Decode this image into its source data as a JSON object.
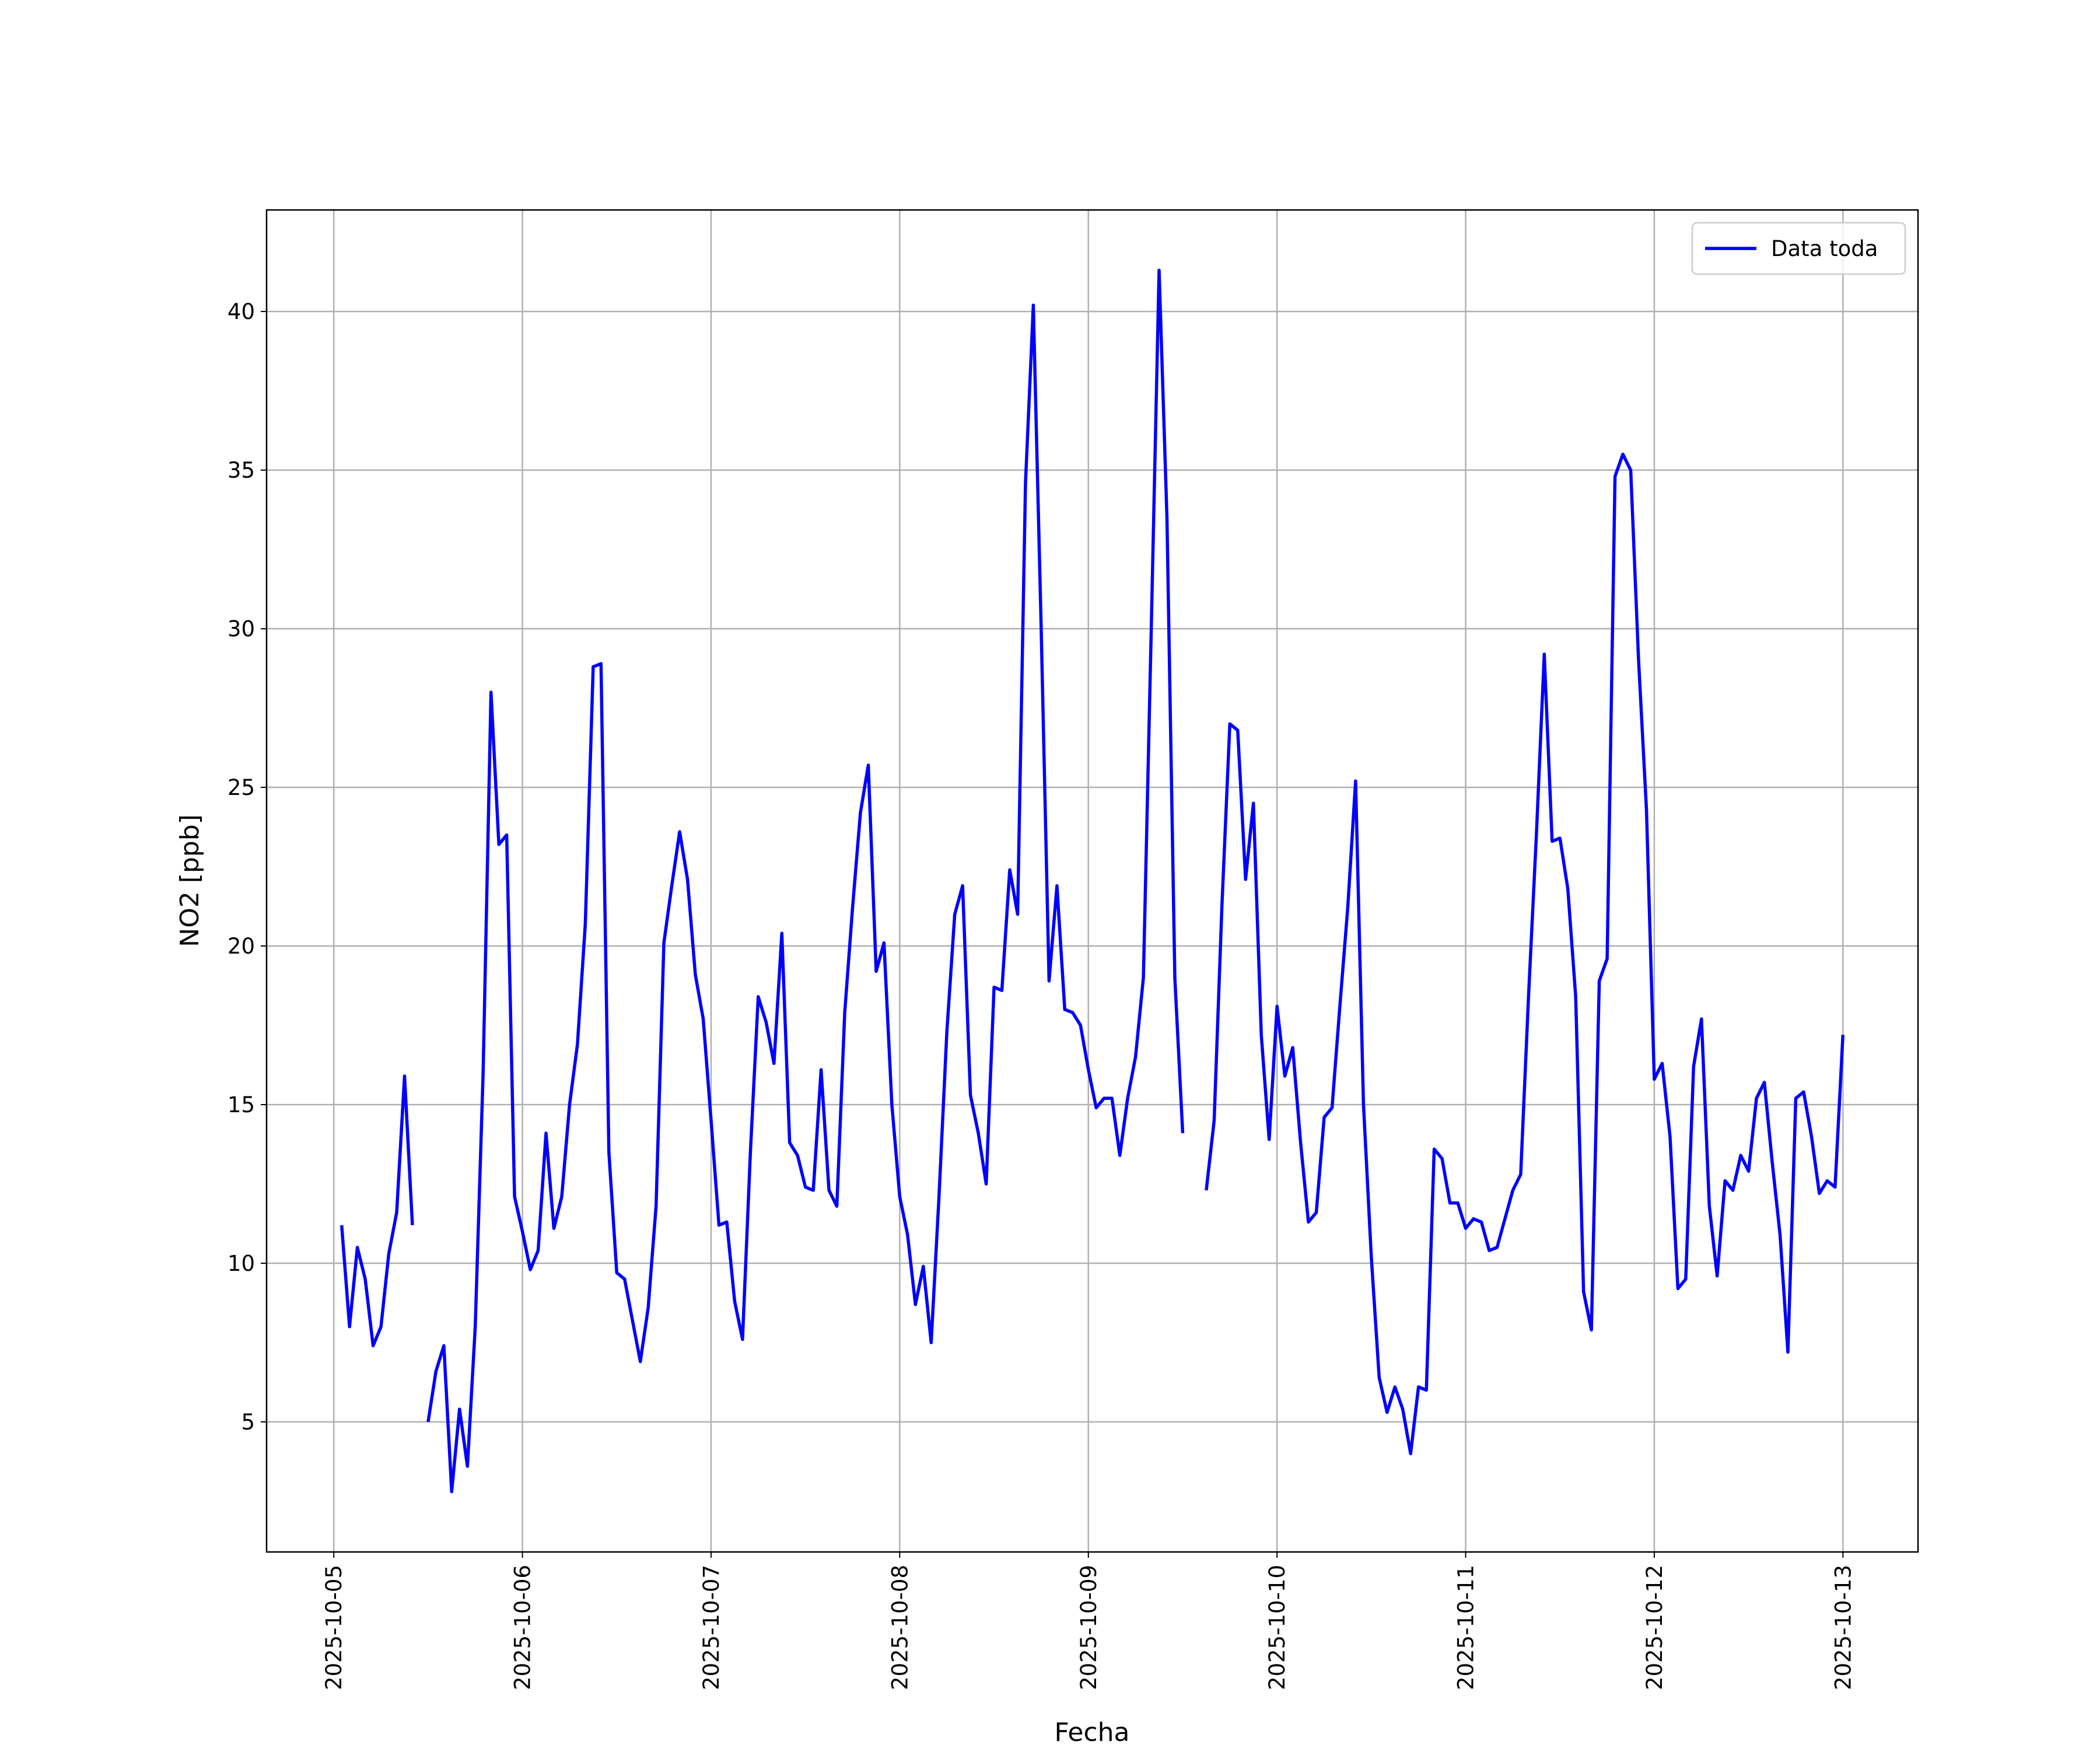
{
  "chart_data": {
    "type": "line",
    "xlabel": "Fecha",
    "ylabel": "NO2 [ppb]",
    "x": [
      "2025-10-05T01:00",
      "2025-10-05T02:00",
      "2025-10-05T03:00",
      "2025-10-05T04:00",
      "2025-10-05T05:00",
      "2025-10-05T06:00",
      "2025-10-05T07:00",
      "2025-10-05T08:00",
      "2025-10-05T09:00",
      "2025-10-05T10:00",
      "2025-10-05T11:00",
      "2025-10-05T12:00",
      "2025-10-05T13:00",
      "2025-10-05T14:00",
      "2025-10-05T15:00",
      "2025-10-05T16:00",
      "2025-10-05T17:00",
      "2025-10-05T18:00",
      "2025-10-05T19:00",
      "2025-10-05T20:00",
      "2025-10-05T21:00",
      "2025-10-05T22:00",
      "2025-10-05T23:00",
      "2025-10-06T00:00",
      "2025-10-06T01:00",
      "2025-10-06T02:00",
      "2025-10-06T03:00",
      "2025-10-06T04:00",
      "2025-10-06T05:00",
      "2025-10-06T06:00",
      "2025-10-06T07:00",
      "2025-10-06T08:00",
      "2025-10-06T09:00",
      "2025-10-06T10:00",
      "2025-10-06T11:00",
      "2025-10-06T12:00",
      "2025-10-06T13:00",
      "2025-10-06T14:00",
      "2025-10-06T15:00",
      "2025-10-06T16:00",
      "2025-10-06T17:00",
      "2025-10-06T18:00",
      "2025-10-06T19:00",
      "2025-10-06T20:00",
      "2025-10-06T21:00",
      "2025-10-06T22:00",
      "2025-10-06T23:00",
      "2025-10-07T00:00",
      "2025-10-07T01:00",
      "2025-10-07T02:00",
      "2025-10-07T03:00",
      "2025-10-07T04:00",
      "2025-10-07T05:00",
      "2025-10-07T06:00",
      "2025-10-07T07:00",
      "2025-10-07T08:00",
      "2025-10-07T09:00",
      "2025-10-07T10:00",
      "2025-10-07T11:00",
      "2025-10-07T12:00",
      "2025-10-07T13:00",
      "2025-10-07T14:00",
      "2025-10-07T15:00",
      "2025-10-07T16:00",
      "2025-10-07T17:00",
      "2025-10-07T18:00",
      "2025-10-07T19:00",
      "2025-10-07T20:00",
      "2025-10-07T21:00",
      "2025-10-07T22:00",
      "2025-10-07T23:00",
      "2025-10-08T00:00",
      "2025-10-08T01:00",
      "2025-10-08T02:00",
      "2025-10-08T03:00",
      "2025-10-08T04:00",
      "2025-10-08T05:00",
      "2025-10-08T06:00",
      "2025-10-08T07:00",
      "2025-10-08T08:00",
      "2025-10-08T09:00",
      "2025-10-08T10:00",
      "2025-10-08T11:00",
      "2025-10-08T12:00",
      "2025-10-08T13:00",
      "2025-10-08T14:00",
      "2025-10-08T15:00",
      "2025-10-08T16:00",
      "2025-10-08T17:00",
      "2025-10-08T18:00",
      "2025-10-08T19:00",
      "2025-10-08T20:00",
      "2025-10-08T21:00",
      "2025-10-08T22:00",
      "2025-10-08T23:00",
      "2025-10-09T00:00",
      "2025-10-09T01:00",
      "2025-10-09T02:00",
      "2025-10-09T03:00",
      "2025-10-09T04:00",
      "2025-10-09T05:00",
      "2025-10-09T06:00",
      "2025-10-09T07:00",
      "2025-10-09T08:00",
      "2025-10-09T09:00",
      "2025-10-09T10:00",
      "2025-10-09T11:00",
      "2025-10-09T12:00",
      "2025-10-09T13:00",
      "2025-10-09T14:00",
      "2025-10-09T15:00",
      "2025-10-09T16:00",
      "2025-10-09T17:00",
      "2025-10-09T18:00",
      "2025-10-09T19:00",
      "2025-10-09T20:00",
      "2025-10-09T21:00",
      "2025-10-09T22:00",
      "2025-10-09T23:00",
      "2025-10-10T00:00",
      "2025-10-10T01:00",
      "2025-10-10T02:00",
      "2025-10-10T03:00",
      "2025-10-10T04:00",
      "2025-10-10T05:00",
      "2025-10-10T06:00",
      "2025-10-10T07:00",
      "2025-10-10T08:00",
      "2025-10-10T09:00",
      "2025-10-10T10:00",
      "2025-10-10T11:00",
      "2025-10-10T12:00",
      "2025-10-10T13:00",
      "2025-10-10T14:00",
      "2025-10-10T15:00",
      "2025-10-10T16:00",
      "2025-10-10T17:00",
      "2025-10-10T18:00",
      "2025-10-10T19:00",
      "2025-10-10T20:00",
      "2025-10-10T21:00",
      "2025-10-10T22:00",
      "2025-10-10T23:00",
      "2025-10-11T00:00",
      "2025-10-11T01:00",
      "2025-10-11T02:00",
      "2025-10-11T03:00",
      "2025-10-11T04:00",
      "2025-10-11T05:00",
      "2025-10-11T06:00",
      "2025-10-11T07:00",
      "2025-10-11T08:00",
      "2025-10-11T09:00",
      "2025-10-11T10:00",
      "2025-10-11T11:00",
      "2025-10-11T12:00",
      "2025-10-11T13:00",
      "2025-10-11T14:00",
      "2025-10-11T15:00",
      "2025-10-11T16:00",
      "2025-10-11T17:00",
      "2025-10-11T18:00",
      "2025-10-11T19:00",
      "2025-10-11T20:00",
      "2025-10-11T21:00",
      "2025-10-11T22:00",
      "2025-10-11T23:00",
      "2025-10-12T00:00",
      "2025-10-12T01:00",
      "2025-10-12T02:00",
      "2025-10-12T03:00",
      "2025-10-12T04:00",
      "2025-10-12T05:00",
      "2025-10-12T06:00",
      "2025-10-12T07:00",
      "2025-10-12T08:00",
      "2025-10-12T09:00",
      "2025-10-12T10:00",
      "2025-10-12T11:00",
      "2025-10-12T12:00",
      "2025-10-12T13:00",
      "2025-10-12T14:00",
      "2025-10-12T15:00",
      "2025-10-12T16:00",
      "2025-10-12T17:00",
      "2025-10-12T18:00",
      "2025-10-12T19:00",
      "2025-10-12T20:00",
      "2025-10-12T21:00",
      "2025-10-12T22:00",
      "2025-10-12T23:00",
      "2025-10-13T00:00"
    ],
    "series": [
      {
        "name": "Data toda",
        "color": "#0000ff",
        "values": [
          11.2,
          8.0,
          10.5,
          9.5,
          7.4,
          8.0,
          10.3,
          11.6,
          15.9,
          11.2,
          null,
          5.0,
          6.6,
          7.4,
          2.8,
          5.4,
          3.6,
          8.0,
          16.0,
          28.0,
          23.2,
          23.5,
          12.1,
          11.0,
          9.8,
          10.4,
          14.1,
          11.1,
          12.1,
          15.0,
          16.9,
          20.7,
          28.8,
          28.9,
          13.5,
          9.7,
          9.5,
          8.2,
          6.9,
          8.6,
          11.8,
          20.1,
          21.9,
          23.6,
          22.1,
          19.1,
          17.7,
          14.5,
          11.2,
          11.3,
          8.8,
          7.6,
          13.5,
          18.4,
          17.6,
          16.3,
          20.4,
          13.8,
          13.4,
          12.4,
          12.3,
          16.1,
          12.3,
          11.8,
          17.9,
          21.2,
          24.2,
          25.7,
          19.2,
          20.1,
          15.0,
          12.1,
          10.9,
          8.7,
          9.9,
          7.5,
          12.1,
          17.3,
          21.0,
          21.9,
          15.3,
          14.1,
          12.5,
          18.7,
          18.6,
          22.4,
          21.0,
          34.6,
          40.2,
          30.0,
          18.9,
          21.9,
          18.0,
          17.9,
          17.5,
          16.1,
          14.9,
          15.2,
          15.2,
          13.4,
          15.2,
          16.5,
          19.0,
          30.0,
          41.3,
          33.5,
          19.0,
          14.1,
          null,
          null,
          12.3,
          14.5,
          21.3,
          27.0,
          26.8,
          22.1,
          24.5,
          17.2,
          13.9,
          18.1,
          15.9,
          16.8,
          13.8,
          11.3,
          11.6,
          14.6,
          14.9,
          18.1,
          21.2,
          25.2,
          15.0,
          10.2,
          6.4,
          5.3,
          6.1,
          5.4,
          4.0,
          6.1,
          6.0,
          13.6,
          13.3,
          11.9,
          11.9,
          11.1,
          11.4,
          11.3,
          10.4,
          10.5,
          11.4,
          12.3,
          12.8,
          18.4,
          23.5,
          29.2,
          23.3,
          23.4,
          21.8,
          18.4,
          9.1,
          7.9,
          18.9,
          19.6,
          34.8,
          35.5,
          35.0,
          29.0,
          24.3,
          15.8,
          16.3,
          14.0,
          9.2,
          9.5,
          16.2,
          17.7,
          11.8,
          9.6,
          12.6,
          12.3,
          13.4,
          12.9,
          15.2,
          15.7,
          13.2,
          10.9,
          7.2,
          15.2,
          15.4,
          14.0,
          12.2,
          12.6,
          12.4,
          17.2
        ]
      }
    ],
    "xlim": [
      "2025-10-04T15:27",
      "2025-10-13T09:33"
    ],
    "xticks": [
      "2025-10-05",
      "2025-10-06",
      "2025-10-07",
      "2025-10-08",
      "2025-10-09",
      "2025-10-10",
      "2025-10-11",
      "2025-10-12",
      "2025-10-13"
    ],
    "ylim": [
      0.9,
      43.2
    ],
    "yticks": [
      5,
      10,
      15,
      20,
      25,
      30,
      35,
      40
    ],
    "grid": true,
    "legend": "upper right"
  }
}
